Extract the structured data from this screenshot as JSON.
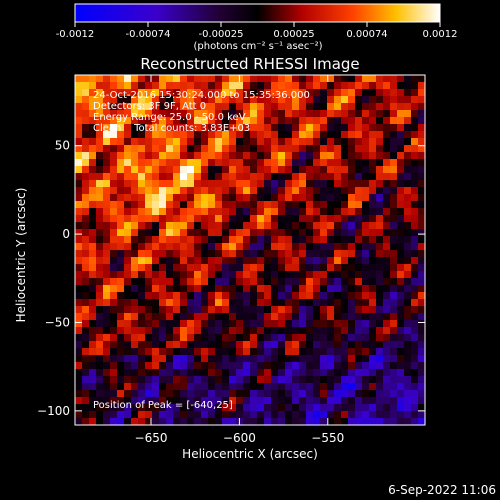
{
  "chart_data": {
    "type": "heatmap",
    "title": "Reconstructed RHESSI Image",
    "xlabel": "Heliocentric X (arcsec)",
    "ylabel": "Heliocentric Y (arcsec)",
    "xlim": [
      -693,
      -495
    ],
    "ylim": [
      -108,
      90
    ],
    "x_ticks": [
      -650,
      -600,
      -550
    ],
    "y_ticks": [
      -100,
      -50,
      0,
      50
    ],
    "colorbar": {
      "label": "(photons cm⁻² s⁻¹ asec⁻²)",
      "min": -0.0012,
      "max": 0.0012,
      "ticks": [
        "-0.0012",
        "-0.00074",
        "-0.00025",
        "0.00025",
        "0.00074",
        "0.0012"
      ],
      "colormap": "blue-black-red-yellow-white"
    },
    "annotations": [
      "24-Oct-2016 15:30:24.000 to 15:35:36.000",
      "Detectors: 3F 9F, Att 0",
      "Energy Range: 25.0 - 50.0 keV",
      "Clean    Total counts: 3.83E+03"
    ],
    "peak_label": "Position of Peak = [-640,25]",
    "grid": false,
    "notes": "Image pixel values are a noisy reconstruction; overall pattern: bright red/yellow ripples upper-left, purple/blue lower-right.",
    "peak_position": [
      -640,
      25
    ],
    "image_grid": {
      "nx": 50,
      "ny": 50
    }
  },
  "footer": {
    "date": "6-Sep-2022 11:06"
  }
}
